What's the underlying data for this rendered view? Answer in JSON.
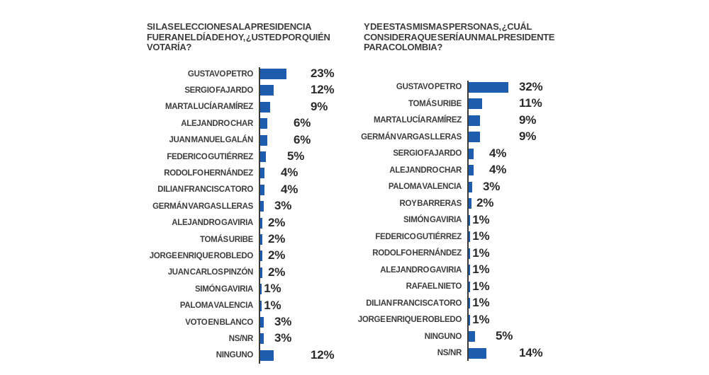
{
  "style": {
    "background": "#ffffff",
    "bar_color": "#1e5dae",
    "axis_color": "#3b3b3b",
    "title_color": "#3d3d3d",
    "label_color": "#3d3d3d",
    "value_color": "#2a2a2a"
  },
  "chart_data": [
    {
      "type": "bar",
      "orientation": "horizontal",
      "unit": "%",
      "legend": "none",
      "grid": false,
      "title": "SI LAS ELECCIONES A LA PRESIDENCIA FUERAN EL DÍA DE HOY, ¿USTED POR QUIÉN VOTARÍA?",
      "title_lines": [
        "SI LAS ELECCIONES A LA PRESIDENCIA",
        "FUERAN EL DÍA DE HOY, ¿USTED POR QUIÉN",
        "VOTARÍA?"
      ],
      "categories": [
        "GUSTAVO PETRO",
        "SERGIO FAJARDO",
        "MARTA LUCÍA RAMÍREZ",
        "ALEJANDRO CHAR",
        "JUAN MANUEL GALÁN",
        "FEDERICO GUTIÉRREZ",
        "RODOLFO HERNÁNDEZ",
        "DILIAN FRANCISCA TORO",
        "GERMÁN VARGAS LLERAS",
        "ALEJANDRO GAVIRIA",
        "TOMÁS URIBE",
        "JORGE ENRIQUE ROBLEDO",
        "JUAN CARLOS PINZÓN",
        "SIMÓN GAVIRIA",
        "PALOMA VALENCIA",
        "VOTO EN BLANCO",
        "NS/NR",
        "NINGUNO"
      ],
      "values": [
        23,
        12,
        9,
        6,
        6,
        5,
        4,
        4,
        3,
        2,
        2,
        2,
        2,
        1,
        1,
        3,
        3,
        12
      ],
      "value_labels": [
        "23%",
        "12%",
        "9%",
        "6%",
        "6%",
        "5%",
        "4%",
        "4%",
        "3%",
        "2%",
        "2%",
        "2%",
        "2%",
        "1%",
        "1%",
        "3%",
        "3%",
        "12%"
      ],
      "xlim": [
        0,
        35
      ]
    },
    {
      "type": "bar",
      "orientation": "horizontal",
      "unit": "%",
      "legend": "none",
      "grid": false,
      "title": "Y DE ESTAS MISMAS PERSONAS, ¿CUÁL CONSIDERA QUE SERÍA UN MAL PRESIDENTE PARA COLOMBIA?",
      "title_lines": [
        "Y DE ESTAS MISMAS PERSONAS, ¿CUÁL",
        "CONSIDERA QUE SERÍA UN MAL PRESIDENTE",
        "PARA COLOMBIA?"
      ],
      "categories": [
        "GUSTAVO PETRO",
        "TOMÁS URIBE",
        "MARTA LUCÍA RAMÍREZ",
        "GERMÁN VARGAS LLERAS",
        "SERGIO FAJARDO",
        "ALEJANDRO CHAR",
        "PALOMA VALENCIA",
        "ROY BARRERAS",
        "SIMÓN GAVIRIA",
        "FEDERICO GUTIÉRREZ",
        "RODOLFO HERNÁNDEZ",
        "ALEJANDRO GAVIRIA",
        "RAFAEL NIETO",
        "DILIAN FRANCISCA TORO",
        "JORGE ENRIQUE ROBLEDO",
        "NINGUNO",
        "NS/NR"
      ],
      "values": [
        32,
        11,
        9,
        9,
        4,
        4,
        3,
        2,
        1,
        1,
        1,
        1,
        1,
        1,
        1,
        5,
        14
      ],
      "value_labels": [
        "32%",
        "11%",
        "9%",
        "9%",
        "4%",
        "4%",
        "3%",
        "2%",
        "1%",
        "1%",
        "1%",
        "1%",
        "1%",
        "1%",
        "1%",
        "5%",
        "14%"
      ],
      "xlim": [
        0,
        35
      ]
    }
  ]
}
